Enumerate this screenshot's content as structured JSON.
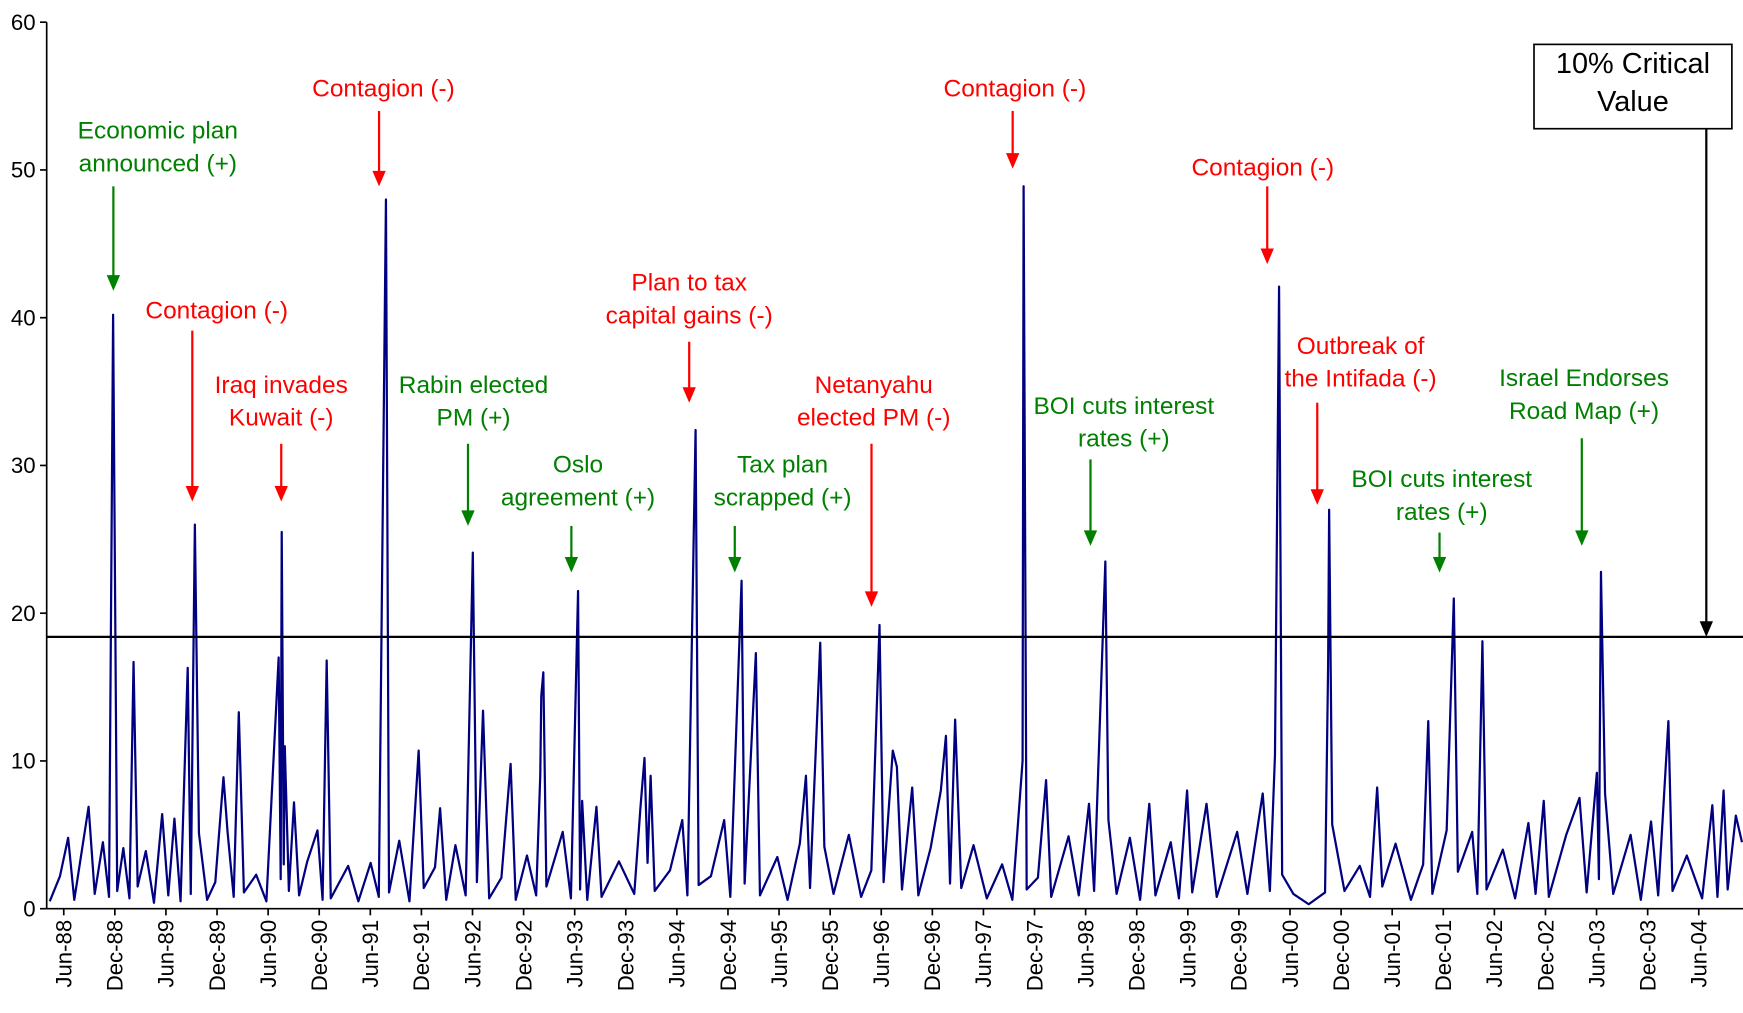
{
  "chart_data": {
    "type": "line",
    "x": [
      1988.28,
      1988.38,
      1988.46,
      1988.52,
      1988.66,
      1988.72,
      1988.8,
      1988.86,
      1988.9,
      1988.94,
      1989.0,
      1989.06,
      1989.1,
      1989.14,
      1989.22,
      1989.3,
      1989.38,
      1989.44,
      1989.5,
      1989.56,
      1989.63,
      1989.66,
      1989.7,
      1989.74,
      1989.82,
      1989.9,
      1989.98,
      1990.02,
      1990.08,
      1990.13,
      1990.18,
      1990.3,
      1990.4,
      1990.52,
      1990.54,
      1990.55,
      1990.57,
      1990.58,
      1990.62,
      1990.67,
      1990.72,
      1990.8,
      1990.9,
      1990.95,
      1990.99,
      1991.03,
      1991.2,
      1991.3,
      1991.42,
      1991.5,
      1991.57,
      1991.6,
      1991.7,
      1991.8,
      1991.89,
      1991.94,
      1992.05,
      1992.1,
      1992.16,
      1992.25,
      1992.35,
      1992.42,
      1992.46,
      1992.52,
      1992.58,
      1992.7,
      1992.79,
      1992.84,
      1992.95,
      1993.04,
      1993.08,
      1993.09,
      1993.11,
      1993.14,
      1993.3,
      1993.38,
      1993.45,
      1993.47,
      1993.49,
      1993.54,
      1993.63,
      1993.68,
      1993.85,
      1994.0,
      1994.06,
      1994.1,
      1994.13,
      1994.16,
      1994.2,
      1994.35,
      1994.47,
      1994.52,
      1994.6,
      1994.63,
      1994.75,
      1994.88,
      1994.94,
      1995.05,
      1995.08,
      1995.19,
      1995.23,
      1995.4,
      1995.5,
      1995.62,
      1995.68,
      1995.72,
      1995.82,
      1995.86,
      1995.95,
      1996.1,
      1996.22,
      1996.32,
      1996.4,
      1996.44,
      1996.53,
      1996.57,
      1996.62,
      1996.72,
      1996.78,
      1996.9,
      1997.0,
      1997.05,
      1997.09,
      1997.14,
      1997.2,
      1997.32,
      1997.45,
      1997.6,
      1997.7,
      1997.8,
      1997.81,
      1997.84,
      1997.95,
      1998.03,
      1998.08,
      1998.25,
      1998.35,
      1998.45,
      1998.5,
      1998.61,
      1998.64,
      1998.72,
      1998.85,
      1998.95,
      1999.04,
      1999.1,
      1999.25,
      1999.33,
      1999.41,
      1999.46,
      1999.6,
      1999.7,
      1999.9,
      2000.0,
      2000.15,
      2000.22,
      2000.27,
      2000.31,
      2000.34,
      2000.45,
      2000.6,
      2000.76,
      2000.79,
      2000.8,
      2000.83,
      2000.95,
      2001.1,
      2001.2,
      2001.27,
      2001.32,
      2001.45,
      2001.6,
      2001.72,
      2001.77,
      2001.81,
      2001.95,
      2002.02,
      2002.06,
      2002.2,
      2002.25,
      2002.3,
      2002.34,
      2002.5,
      2002.62,
      2002.75,
      2002.82,
      2002.9,
      2002.95,
      2003.12,
      2003.25,
      2003.32,
      2003.42,
      2003.44,
      2003.46,
      2003.5,
      2003.58,
      2003.75,
      2003.85,
      2003.95,
      2004.02,
      2004.12,
      2004.16,
      2004.3,
      2004.45,
      2004.55,
      2004.6,
      2004.66,
      2004.7,
      2004.78,
      2004.84
    ],
    "series": [
      {
        "color": "#000080",
        "values": [
          0.5,
          2.2,
          4.8,
          0.6,
          6.9,
          1.0,
          4.5,
          0.8,
          40.2,
          1.2,
          4.1,
          0.7,
          16.7,
          1.5,
          3.9,
          0.4,
          6.4,
          0.9,
          6.1,
          0.5,
          16.3,
          1.0,
          26,
          5.1,
          0.6,
          1.8,
          8.9,
          5.2,
          0.8,
          13.3,
          1.1,
          2.3,
          0.5,
          17,
          2,
          25.5,
          3,
          11,
          1.2,
          7.2,
          0.9,
          3.2,
          5.3,
          0.6,
          16.8,
          0.7,
          2.9,
          0.5,
          3.1,
          0.8,
          48,
          1.1,
          4.6,
          0.5,
          10.7,
          1.4,
          2.8,
          6.8,
          0.6,
          4.3,
          0.9,
          24.1,
          1.8,
          13.4,
          0.7,
          2.1,
          9.8,
          0.6,
          3.6,
          0.9,
          9.0,
          14.4,
          16,
          1.5,
          5.2,
          0.7,
          21.5,
          1.3,
          7.3,
          0.6,
          6.9,
          0.8,
          3.2,
          1.0,
          6.8,
          10.2,
          3.1,
          9.0,
          1.2,
          2.6,
          6,
          0.9,
          32.4,
          1.6,
          2.2,
          6,
          0.8,
          22.2,
          1.7,
          17.3,
          0.9,
          3.5,
          0.6,
          4.4,
          9,
          1.4,
          18,
          4.2,
          1.0,
          5.0,
          0.8,
          2.6,
          19.2,
          1.8,
          10.7,
          9.6,
          1.3,
          8.2,
          0.9,
          4.1,
          8.0,
          11.7,
          1.7,
          12.8,
          1.4,
          4.3,
          0.7,
          3.0,
          0.6,
          10.0,
          48.9,
          1.3,
          2.1,
          8.7,
          0.8,
          4.9,
          0.9,
          7.1,
          1.2,
          23.5,
          6.0,
          1.0,
          4.8,
          0.6,
          7.1,
          0.9,
          4.5,
          0.7,
          8,
          1.1,
          7.1,
          0.8,
          5.2,
          1.0,
          7.8,
          1.2,
          10.4,
          42.1,
          2.3,
          1.0,
          0.3,
          1.1,
          16.5,
          27,
          5.7,
          1.2,
          2.9,
          0.8,
          8.2,
          1.5,
          4.4,
          0.6,
          3.0,
          12.7,
          1.0,
          5.3,
          21,
          2.5,
          5.2,
          1.0,
          18.1,
          1.3,
          4.0,
          0.7,
          5.8,
          1.0,
          7.3,
          0.8,
          5.0,
          7.5,
          1.1,
          9.2,
          2.0,
          22.8,
          7.8,
          1.0,
          5.0,
          0.6,
          5.9,
          0.9,
          12.7,
          1.2,
          3.6,
          0.7,
          7.0,
          0.8,
          8,
          1.3,
          6.3,
          4.5
        ]
      }
    ],
    "xlim": [
      1988.25,
      2004.85
    ],
    "xticks": [
      {
        "value": 1988.417,
        "label": "Jun-88"
      },
      {
        "value": 1988.917,
        "label": "Dec-88"
      },
      {
        "value": 1989.417,
        "label": "Jun-89"
      },
      {
        "value": 1989.917,
        "label": "Dec-89"
      },
      {
        "value": 1990.417,
        "label": "Jun-90"
      },
      {
        "value": 1990.917,
        "label": "Dec-90"
      },
      {
        "value": 1991.417,
        "label": "Jun-91"
      },
      {
        "value": 1991.917,
        "label": "Dec-91"
      },
      {
        "value": 1992.417,
        "label": "Jun-92"
      },
      {
        "value": 1992.917,
        "label": "Dec-92"
      },
      {
        "value": 1993.417,
        "label": "Jun-93"
      },
      {
        "value": 1993.917,
        "label": "Dec-93"
      },
      {
        "value": 1994.417,
        "label": "Jun-94"
      },
      {
        "value": 1994.917,
        "label": "Dec-94"
      },
      {
        "value": 1995.417,
        "label": "Jun-95"
      },
      {
        "value": 1995.917,
        "label": "Dec-95"
      },
      {
        "value": 1996.417,
        "label": "Jun-96"
      },
      {
        "value": 1996.917,
        "label": "Dec-96"
      },
      {
        "value": 1997.417,
        "label": "Jun-97"
      },
      {
        "value": 1997.917,
        "label": "Dec-97"
      },
      {
        "value": 1998.417,
        "label": "Jun-98"
      },
      {
        "value": 1998.917,
        "label": "Dec-98"
      },
      {
        "value": 1999.417,
        "label": "Jun-99"
      },
      {
        "value": 1999.917,
        "label": "Dec-99"
      },
      {
        "value": 2000.417,
        "label": "Jun-00"
      },
      {
        "value": 2000.917,
        "label": "Dec-00"
      },
      {
        "value": 2001.417,
        "label": "Jun-01"
      },
      {
        "value": 2001.917,
        "label": "Dec-01"
      },
      {
        "value": 2002.417,
        "label": "Jun-02"
      },
      {
        "value": 2002.917,
        "label": "Dec-02"
      },
      {
        "value": 2003.417,
        "label": "Jun-03"
      },
      {
        "value": 2003.917,
        "label": "Dec-03"
      },
      {
        "value": 2004.417,
        "label": "Jun-04"
      }
    ],
    "ylim": [
      0,
      60
    ],
    "yticks": [
      0,
      10,
      20,
      30,
      40,
      50,
      60
    ],
    "critical_value": 18.4,
    "critical_label": [
      "10% Critical",
      "Value"
    ],
    "annotations": [
      {
        "lines": [
          "Economic plan",
          "announced (+)"
        ],
        "color": "#008000"
      },
      {
        "lines": [
          "Contagion (-)"
        ],
        "color": "#ff0000"
      },
      {
        "lines": [
          "Iraq invades",
          "Kuwait (-)"
        ],
        "color": "#ff0000"
      },
      {
        "lines": [
          "Contagion (-)"
        ],
        "color": "#ff0000"
      },
      {
        "lines": [
          "Rabin elected",
          "PM (+)"
        ],
        "color": "#008000"
      },
      {
        "lines": [
          "Oslo",
          "agreement (+)"
        ],
        "color": "#008000"
      },
      {
        "lines": [
          "Plan to tax",
          "capital gains (-)"
        ],
        "color": "#ff0000"
      },
      {
        "lines": [
          "Tax plan",
          "scrapped (+)"
        ],
        "color": "#008000"
      },
      {
        "lines": [
          "Netanyahu",
          "elected PM (-)"
        ],
        "color": "#ff0000"
      },
      {
        "lines": [
          "Contagion (-)"
        ],
        "color": "#ff0000"
      },
      {
        "lines": [
          "BOI cuts interest",
          "rates (+)"
        ],
        "color": "#008000"
      },
      {
        "lines": [
          "Contagion (-)"
        ],
        "color": "#ff0000"
      },
      {
        "lines": [
          "Outbreak of",
          "the Intifada (-)"
        ],
        "color": "#ff0000"
      },
      {
        "lines": [
          "BOI cuts interest",
          "rates (+)"
        ],
        "color": "#008000"
      },
      {
        "lines": [
          "Israel Endorses",
          "Road Map (+)"
        ],
        "color": "#008000"
      }
    ]
  }
}
